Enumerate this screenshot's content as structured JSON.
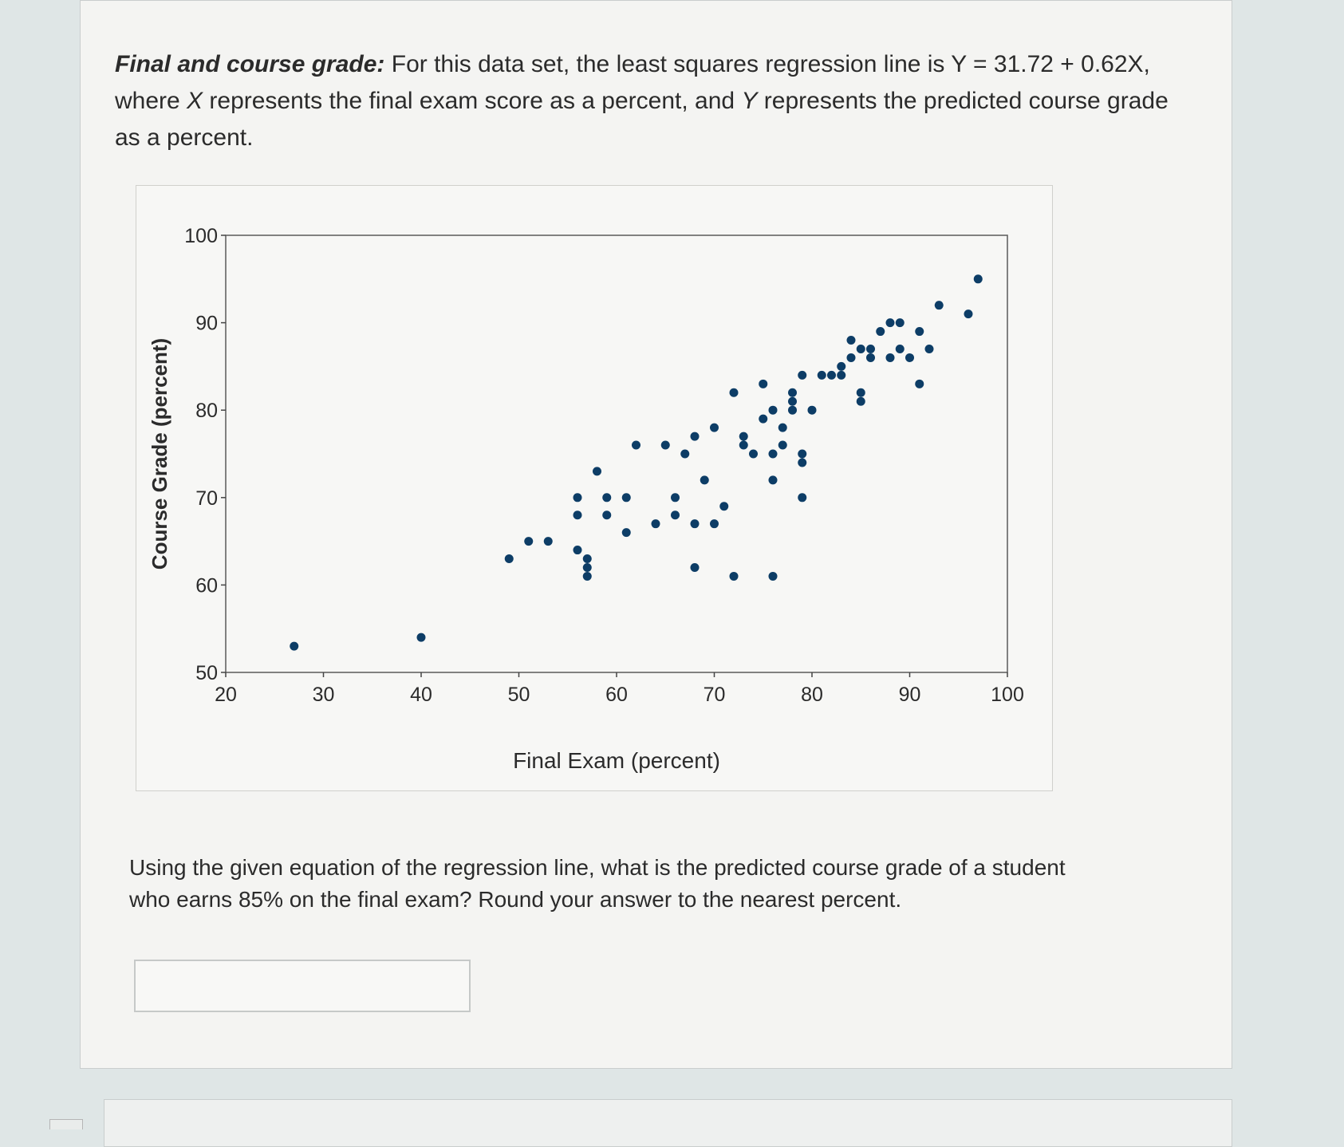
{
  "problem": {
    "title": "Final and course grade:",
    "intro_1": " For this data set, the least squares regression line is Y = 31.72 + 0.62X, where ",
    "var_x": "X",
    "intro_2": " represents the final exam score as a percent, and ",
    "var_y": "Y",
    "intro_3": " represents the predicted course grade as a percent.",
    "question": "Using the given equation of the regression line, what is the predicted course grade of a student who earns 85% on the final exam? Round your answer to the nearest percent.",
    "answer_value": ""
  },
  "colors": {
    "point": "#0d3d66",
    "axis": "#444444",
    "text": "#2b2b2b"
  },
  "chart_data": {
    "type": "scatter",
    "title": "",
    "xlabel": "Final Exam (percent)",
    "ylabel": "Course Grade (percent)",
    "xlim": [
      20,
      100
    ],
    "ylim": [
      50,
      100
    ],
    "xticks": [
      20,
      30,
      40,
      50,
      60,
      70,
      80,
      90,
      100
    ],
    "yticks": [
      50,
      60,
      70,
      80,
      90,
      100
    ],
    "grid": false,
    "series": [
      {
        "points": [
          [
            27,
            53
          ],
          [
            40,
            54
          ],
          [
            49,
            63
          ],
          [
            51,
            65
          ],
          [
            53,
            65
          ],
          [
            56,
            64
          ],
          [
            56,
            68
          ],
          [
            56,
            70
          ],
          [
            57,
            63
          ],
          [
            57,
            62
          ],
          [
            57,
            61
          ],
          [
            58,
            73
          ],
          [
            59,
            70
          ],
          [
            59,
            68
          ],
          [
            61,
            70
          ],
          [
            61,
            66
          ],
          [
            62,
            76
          ],
          [
            64,
            67
          ],
          [
            65,
            76
          ],
          [
            66,
            70
          ],
          [
            66,
            68
          ],
          [
            67,
            75
          ],
          [
            68,
            77
          ],
          [
            68,
            62
          ],
          [
            68,
            67
          ],
          [
            69,
            72
          ],
          [
            70,
            67
          ],
          [
            70,
            78
          ],
          [
            71,
            69
          ],
          [
            72,
            82
          ],
          [
            72,
            61
          ],
          [
            73,
            77
          ],
          [
            73,
            76
          ],
          [
            74,
            75
          ],
          [
            75,
            83
          ],
          [
            75,
            79
          ],
          [
            76,
            80
          ],
          [
            76,
            72
          ],
          [
            76,
            61
          ],
          [
            76,
            75
          ],
          [
            77,
            78
          ],
          [
            77,
            76
          ],
          [
            78,
            81
          ],
          [
            78,
            80
          ],
          [
            78,
            82
          ],
          [
            79,
            75
          ],
          [
            79,
            74
          ],
          [
            79,
            70
          ],
          [
            79,
            84
          ],
          [
            80,
            80
          ],
          [
            81,
            84
          ],
          [
            82,
            84
          ],
          [
            83,
            84
          ],
          [
            83,
            85
          ],
          [
            84,
            86
          ],
          [
            84,
            88
          ],
          [
            85,
            87
          ],
          [
            85,
            81
          ],
          [
            85,
            82
          ],
          [
            86,
            87
          ],
          [
            86,
            86
          ],
          [
            87,
            89
          ],
          [
            88,
            90
          ],
          [
            88,
            86
          ],
          [
            89,
            90
          ],
          [
            89,
            87
          ],
          [
            90,
            86
          ],
          [
            91,
            89
          ],
          [
            91,
            83
          ],
          [
            92,
            87
          ],
          [
            93,
            92
          ],
          [
            96,
            91
          ],
          [
            97,
            95
          ]
        ]
      }
    ]
  }
}
